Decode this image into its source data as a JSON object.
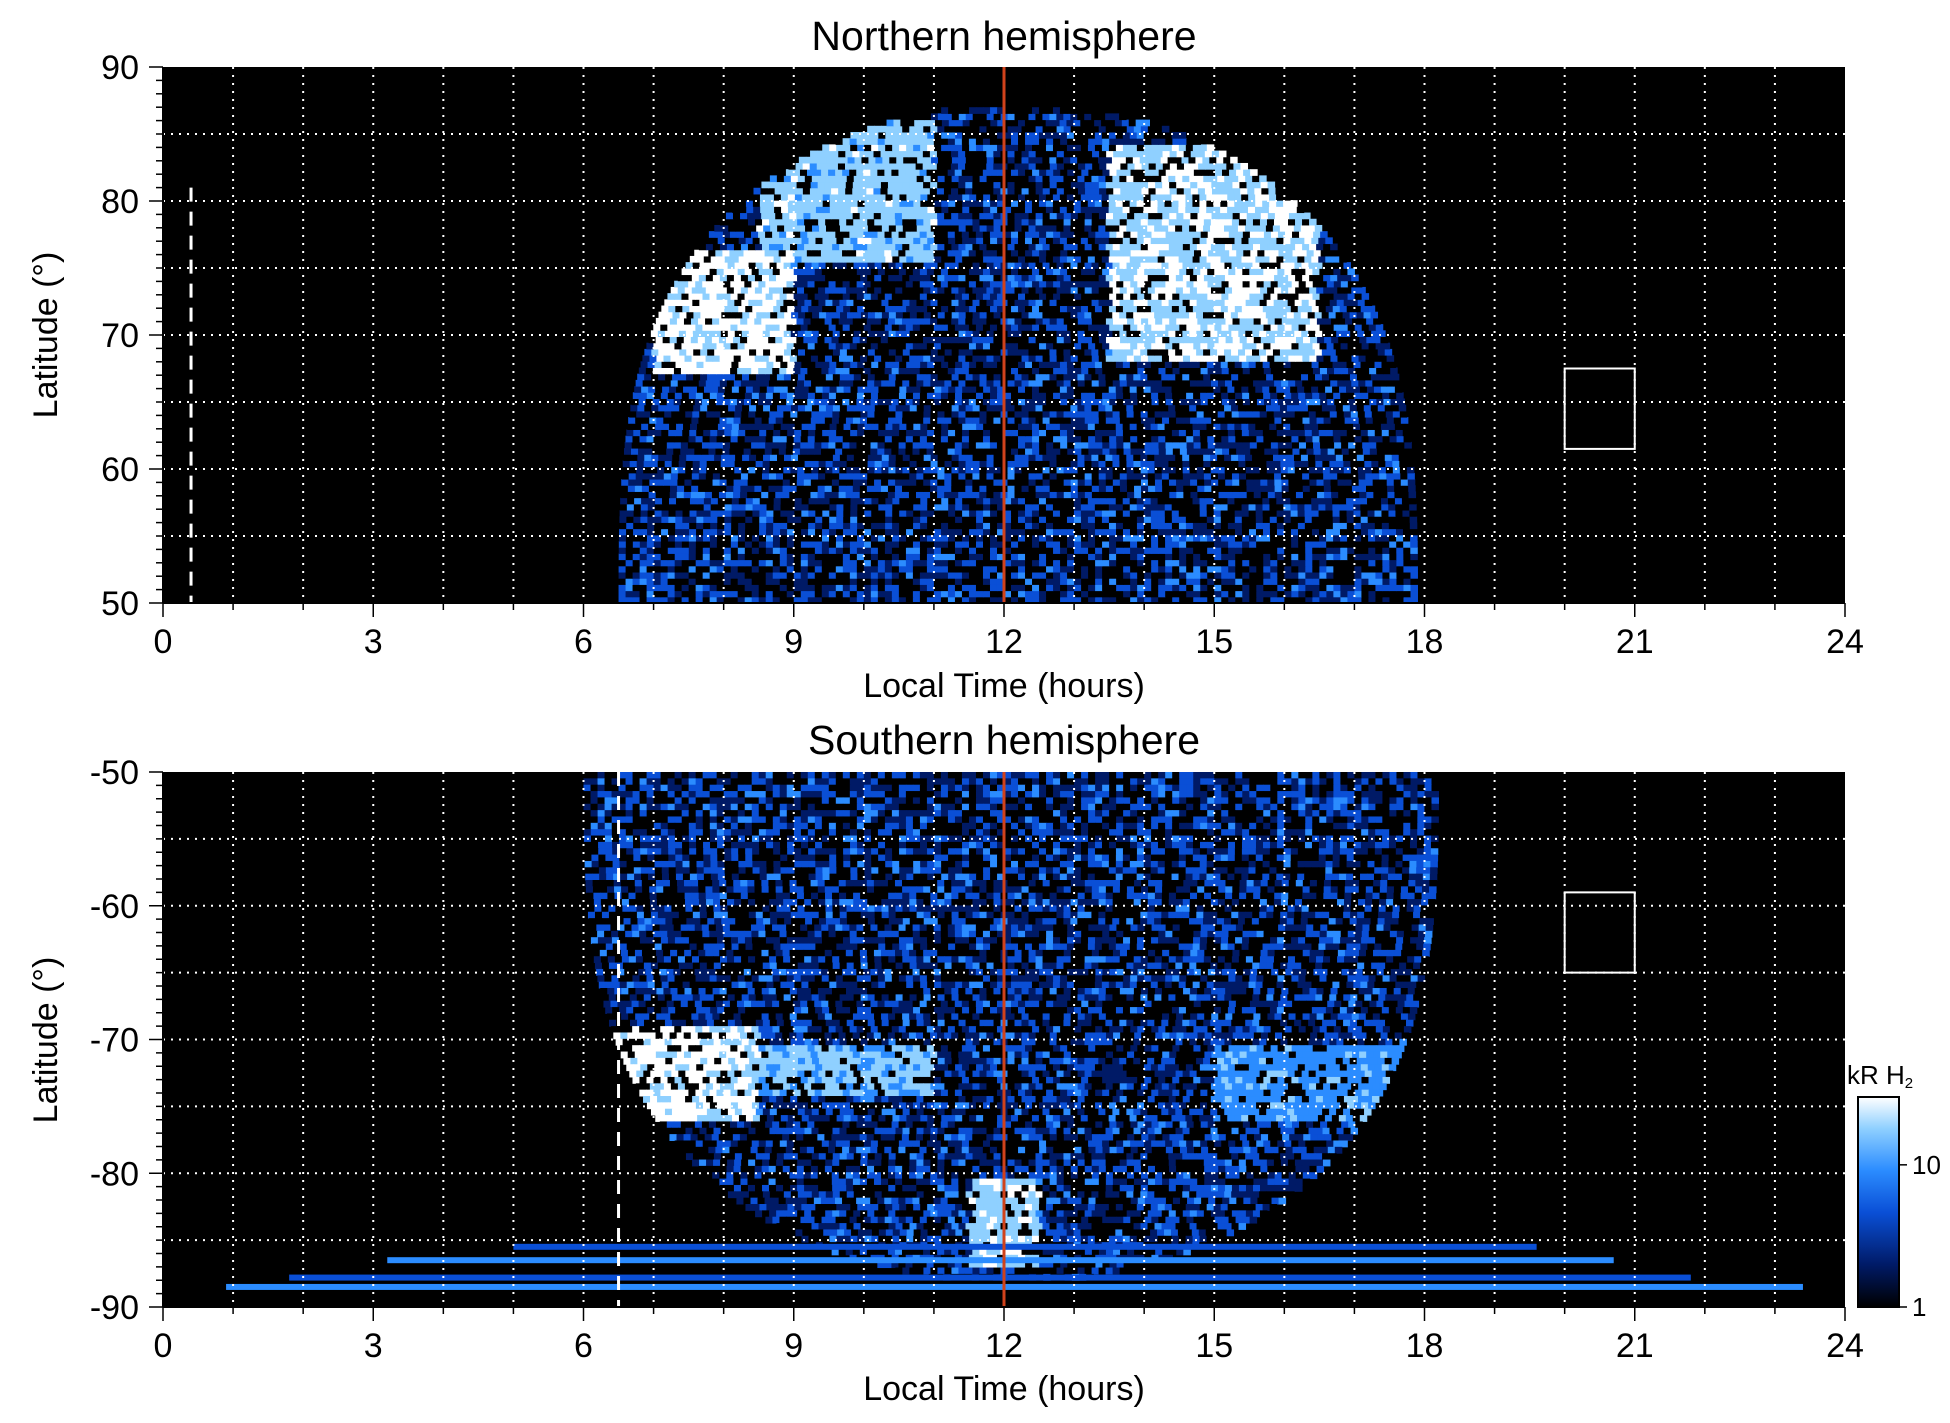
{
  "colors": {
    "background": "#000000",
    "grid": "#ffffff",
    "noon_line": "#d0421b",
    "dawn_line": "#ffffff",
    "colormap": [
      "#000000",
      "#001a66",
      "#0a4fd6",
      "#2b8cff",
      "#8fd0ff",
      "#ffffff"
    ]
  },
  "colorbar": {
    "label": "kR H",
    "label_sub": "2",
    "ticks": [
      {
        "value": 10,
        "label": "10"
      },
      {
        "value": 1,
        "label": "1"
      }
    ],
    "range": [
      1,
      30
    ],
    "scale": "log"
  },
  "chart_data": [
    {
      "type": "heatmap",
      "title": "Northern hemisphere",
      "xlabel": "Local Time (hours)",
      "ylabel": "Latitude (°)",
      "xlim": [
        0,
        24
      ],
      "ylim": [
        50,
        90
      ],
      "x_ticks": [
        0,
        3,
        6,
        9,
        12,
        15,
        18,
        21,
        24
      ],
      "y_ticks": [
        50,
        60,
        70,
        80,
        90
      ],
      "grid": true,
      "noon_line_lt": 12,
      "dashed_line_lt": 0.4,
      "dashed_line_lat_max": 81,
      "box": {
        "lt": [
          20,
          21
        ],
        "lat": [
          61.5,
          67.5
        ]
      },
      "coverage": {
        "lt_start_at_50": 6.5,
        "lt_end_at_50": 17.9,
        "lat_max": 87
      },
      "bright_regions": [
        {
          "lt": [
            7.0,
            9.0
          ],
          "lat": [
            67,
            76
          ],
          "level": 1.0
        },
        {
          "lt": [
            8.5,
            11.0
          ],
          "lat": [
            75,
            86
          ],
          "level": 0.85
        },
        {
          "lt": [
            13.5,
            16.5
          ],
          "lat": [
            68,
            84
          ],
          "level": 0.95
        }
      ]
    },
    {
      "type": "heatmap",
      "title": "Southern hemisphere",
      "xlabel": "Local Time (hours)",
      "ylabel": "Latitude (°)",
      "xlim": [
        0,
        24
      ],
      "ylim": [
        -90,
        -50
      ],
      "x_ticks": [
        0,
        3,
        6,
        9,
        12,
        15,
        18,
        21,
        24
      ],
      "y_ticks": [
        -90,
        -80,
        -70,
        -60,
        -50
      ],
      "grid": true,
      "noon_line_lt": 12,
      "dashed_line_lt": 6.5,
      "box": {
        "lt": [
          20,
          21
        ],
        "lat": [
          -65,
          -59
        ]
      },
      "coverage": {
        "lt_start_at_50": 6.0,
        "lt_end_at_50": 18.2,
        "lat_max": -88
      },
      "bright_regions": [
        {
          "lt": [
            6.0,
            8.5
          ],
          "lat": [
            -76,
            -69
          ],
          "level": 1.0
        },
        {
          "lt": [
            8.5,
            11.0
          ],
          "lat": [
            -74,
            -70
          ],
          "level": 0.8
        },
        {
          "lt": [
            11.5,
            12.5
          ],
          "lat": [
            -87,
            -80
          ],
          "level": 0.9
        },
        {
          "lt": [
            15.0,
            18.0
          ],
          "lat": [
            -76,
            -70
          ],
          "level": 0.7
        }
      ]
    }
  ]
}
